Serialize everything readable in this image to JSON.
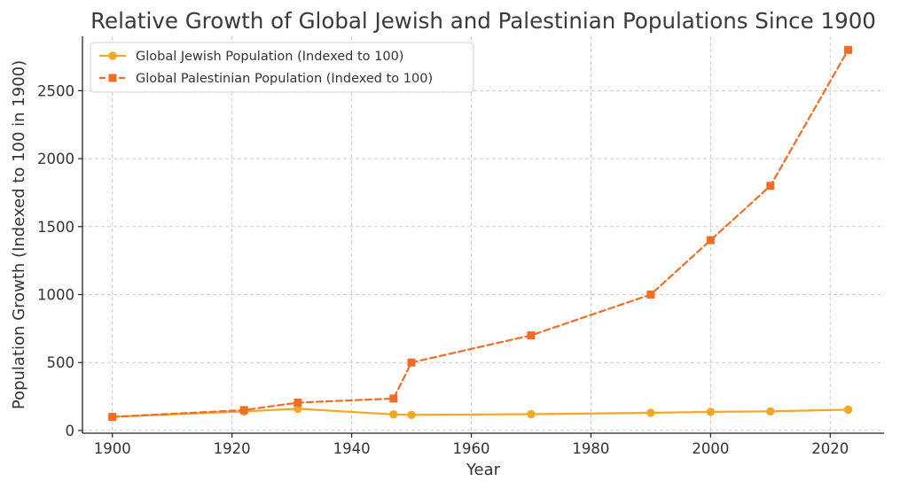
{
  "chart_data": {
    "type": "line",
    "title": "Relative Growth of Global Jewish and Palestinian Populations Since 1900",
    "xlabel": "Year",
    "ylabel": "Population Growth (Indexed to 100 in 1900)",
    "xlim": [
      1895,
      2029
    ],
    "ylim": [
      -20,
      2900
    ],
    "xticks": [
      1900,
      1920,
      1940,
      1960,
      1980,
      2000,
      2020
    ],
    "yticks": [
      0,
      500,
      1000,
      1500,
      2000,
      2500
    ],
    "grid": true,
    "legend_position": "top-left",
    "series": [
      {
        "name": "Global Jewish Population (Indexed to 100)",
        "color": "#f5a623",
        "line_style": "solid",
        "marker": "circle",
        "points": [
          {
            "x": 1900,
            "y": 100
          },
          {
            "x": 1922,
            "y": 140
          },
          {
            "x": 1931,
            "y": 160
          },
          {
            "x": 1947,
            "y": 118
          },
          {
            "x": 1950,
            "y": 115
          },
          {
            "x": 1970,
            "y": 120
          },
          {
            "x": 1990,
            "y": 130
          },
          {
            "x": 2000,
            "y": 137
          },
          {
            "x": 2010,
            "y": 141
          },
          {
            "x": 2023,
            "y": 153
          }
        ]
      },
      {
        "name": "Global Palestinian Population (Indexed to 100)",
        "color": "#f06d24",
        "line_style": "dashed",
        "marker": "square",
        "points": [
          {
            "x": 1900,
            "y": 100
          },
          {
            "x": 1922,
            "y": 150
          },
          {
            "x": 1931,
            "y": 205
          },
          {
            "x": 1947,
            "y": 235
          },
          {
            "x": 1950,
            "y": 500
          },
          {
            "x": 1970,
            "y": 700
          },
          {
            "x": 1990,
            "y": 1000
          },
          {
            "x": 2000,
            "y": 1400
          },
          {
            "x": 2010,
            "y": 1800
          },
          {
            "x": 2023,
            "y": 2800
          }
        ]
      }
    ]
  }
}
